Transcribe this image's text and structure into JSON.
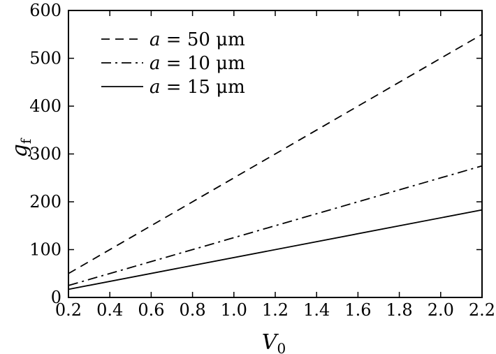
{
  "chart_data": {
    "type": "line",
    "xlabel": "V",
    "xlabel_sub": "0",
    "ylabel": "g",
    "ylabel_sub": "f",
    "xlim": [
      0.2,
      2.2
    ],
    "ylim": [
      0,
      600
    ],
    "xticks": [
      "0.2",
      "0.4",
      "0.6",
      "0.8",
      "1.0",
      "1.2",
      "1.4",
      "1.6",
      "1.8",
      "2.0",
      "2.2"
    ],
    "yticks": [
      "0",
      "100",
      "200",
      "300",
      "400",
      "500",
      "600"
    ],
    "grid": false,
    "legend_position": "top-left",
    "series": [
      {
        "name": "a = 50 μm",
        "var": "a",
        "rest": " = 50 μm",
        "style": "dashed",
        "x": [
          0.2,
          2.2
        ],
        "y": [
          50,
          550
        ]
      },
      {
        "name": "a = 10 μm",
        "var": "a",
        "rest": " = 10 μm",
        "style": "dash-dot",
        "x": [
          0.2,
          2.2
        ],
        "y": [
          25,
          275
        ]
      },
      {
        "name": "a = 15 μm",
        "var": "a",
        "rest": " = 15 μm",
        "style": "solid",
        "x": [
          0.2,
          2.2
        ],
        "y": [
          17,
          183
        ]
      }
    ]
  }
}
